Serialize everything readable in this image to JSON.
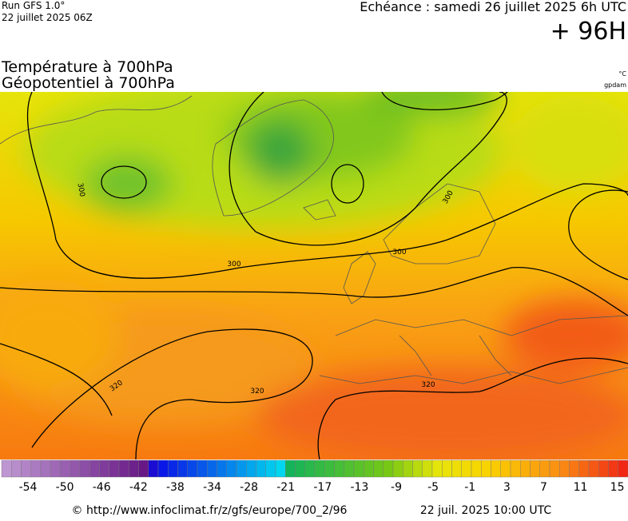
{
  "header": {
    "run": "Run GFS 1.0°",
    "run_date": "22 juillet 2025 06Z",
    "valid": "Echéance : samedi 26 juillet 2025 6h UTC",
    "lead": "+ 96H"
  },
  "titles": [
    "Température à 700hPa",
    "Géopotentiel à 700hPa"
  ],
  "units": [
    "°C",
    "gpdam"
  ],
  "contour_labels": [
    300,
    300,
    300,
    300,
    320,
    320,
    320
  ],
  "colorbar": {
    "labels": [
      -54,
      -50,
      -46,
      -42,
      -38,
      -34,
      -28,
      -21,
      -17,
      -13,
      -9,
      -5,
      -1,
      3,
      7,
      11,
      15
    ]
  },
  "footer": {
    "url": "© http://www.infoclimat.fr/z/gfs/europe/700_2/96",
    "date": "22 juil. 2025 10:00 UTC"
  }
}
